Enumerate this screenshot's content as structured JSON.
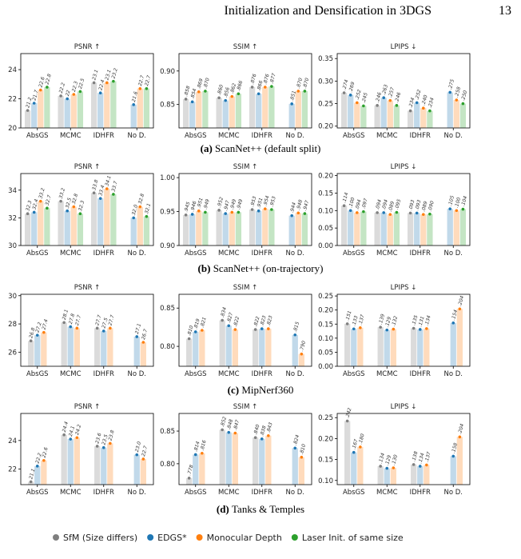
{
  "header": {
    "title": "Initialization and Densification in 3DGS",
    "page": "13"
  },
  "captions": [
    {
      "label": "(a)",
      "text": "ScanNet++ (default split)"
    },
    {
      "label": "(b)",
      "text": "ScanNet++ (on-trajectory)"
    },
    {
      "label": "(c)",
      "text": "MipNerf360"
    },
    {
      "label": "(d)",
      "text": "Tanks & Temples"
    }
  ],
  "chart_data": [
    {
      "type": "bar",
      "title": "PSNR ↑",
      "categories": [
        "AbsGS",
        "MCMC",
        "IDHFR",
        "No D."
      ],
      "ylim": [
        20,
        25.1
      ],
      "yticks": [
        20,
        22,
        24
      ],
      "series": [
        {
          "name": "SfM (Size differs)",
          "color": "#7f7f7f",
          "values": [
            21.2,
            22.2,
            23.1,
            null
          ]
        },
        {
          "name": "EDGS*",
          "color": "#1f77b4",
          "values": [
            21.7,
            22.0,
            22.4,
            21.6
          ]
        },
        {
          "name": "Monocular Depth",
          "color": "#ff7f0e",
          "values": [
            22.6,
            22.3,
            23.1,
            22.7
          ]
        },
        {
          "name": "Laser Init. of same size",
          "color": "#2ca02c",
          "values": [
            22.8,
            22.5,
            23.2,
            22.7
          ]
        }
      ]
    },
    {
      "type": "bar",
      "title": "SSIM ↑",
      "categories": [
        "AbsGS",
        "MCMC",
        "IDHFR",
        "No D."
      ],
      "ylim": [
        0.815,
        0.926
      ],
      "yticks": [
        0.85,
        {
          "value": 0.9,
          "label": "0.90"
        }
      ],
      "series": [
        {
          "name": "SfM (Size differs)",
          "color": "#7f7f7f",
          "values": [
            0.858,
            0.86,
            0.876,
            null
          ],
          "value_labels": [
            ".858",
            ".860",
            ".876",
            null
          ]
        },
        {
          "name": "EDGS*",
          "color": "#1f77b4",
          "values": [
            0.854,
            0.856,
            0.866,
            0.851
          ],
          "value_labels": [
            ".854",
            ".856",
            ".866",
            ".851"
          ]
        },
        {
          "name": "Monocular Depth",
          "color": "#ff7f0e",
          "values": [
            0.869,
            0.862,
            0.876,
            0.87
          ],
          "value_labels": [
            ".869",
            ".862",
            ".876",
            ".870"
          ]
        },
        {
          "name": "Laser Init. of same size",
          "color": "#2ca02c",
          "values": [
            0.87,
            0.866,
            0.877,
            0.87
          ],
          "value_labels": [
            ".870",
            ".866",
            ".877",
            ".870"
          ]
        }
      ]
    },
    {
      "type": "bar",
      "title": "LPIPS ↓",
      "categories": [
        "AbsGS",
        "MCMC",
        "IDHFR",
        "No D."
      ],
      "ylim": [
        0.196,
        0.361
      ],
      "yticks": [
        {
          "value": 0.2,
          "label": "0.20"
        },
        0.25,
        {
          "value": 0.3,
          "label": "0.30"
        },
        0.35
      ],
      "series": [
        {
          "name": "SfM (Size differs)",
          "color": "#7f7f7f",
          "values": [
            0.274,
            0.246,
            0.234,
            null
          ],
          "value_labels": [
            ".274",
            ".246",
            ".234",
            null
          ]
        },
        {
          "name": "EDGS*",
          "color": "#1f77b4",
          "values": [
            0.269,
            0.263,
            0.252,
            0.275
          ],
          "value_labels": [
            ".269",
            ".263",
            ".252",
            ".275"
          ]
        },
        {
          "name": "Monocular Depth",
          "color": "#ff7f0e",
          "values": [
            0.252,
            0.257,
            0.24,
            0.258
          ],
          "value_labels": [
            ".252",
            ".257",
            ".240",
            ".258"
          ]
        },
        {
          "name": "Laser Init. of same size",
          "color": "#2ca02c",
          "values": [
            0.245,
            0.246,
            0.234,
            0.25
          ],
          "value_labels": [
            ".245",
            ".246",
            ".234",
            ".250"
          ]
        }
      ]
    },
    {
      "type": "bar",
      "title": "PSNR ↑",
      "categories": [
        "AbsGS",
        "MCMC",
        "IDHFR",
        "No D."
      ],
      "ylim": [
        30,
        35.2
      ],
      "yticks": [
        30,
        32,
        34
      ],
      "series": [
        {
          "name": "SfM (Size differs)",
          "color": "#7f7f7f",
          "values": [
            32.3,
            33.2,
            33.8,
            null
          ]
        },
        {
          "name": "EDGS*",
          "color": "#1f77b4",
          "values": [
            32.4,
            32.5,
            33.4,
            32.0
          ],
          "value_labels": [
            "32.4",
            "32.5",
            "33.4",
            "32.0"
          ]
        },
        {
          "name": "Monocular Depth",
          "color": "#ff7f0e",
          "values": [
            33.2,
            32.8,
            34.1,
            32.8
          ]
        },
        {
          "name": "Laser Init. of same size",
          "color": "#2ca02c",
          "values": [
            32.7,
            32.3,
            33.7,
            32.1
          ]
        }
      ]
    },
    {
      "type": "bar",
      "title": "SSIM ↑",
      "categories": [
        "AbsGS",
        "MCMC",
        "IDHFR",
        "No D."
      ],
      "ylim": [
        0.9,
        1.006
      ],
      "yticks": [
        {
          "value": 0.9,
          "label": "0.90"
        },
        0.95,
        {
          "value": 1,
          "label": "1.00"
        }
      ],
      "series": [
        {
          "name": "SfM (Size differs)",
          "color": "#7f7f7f",
          "values": [
            0.945,
            0.952,
            0.953,
            null
          ],
          "value_labels": [
            ".945",
            ".952",
            ".953",
            null
          ]
        },
        {
          "name": "EDGS*",
          "color": "#1f77b4",
          "values": [
            0.946,
            0.947,
            0.951,
            0.944
          ],
          "value_labels": [
            ".946",
            ".947",
            ".951",
            ".944"
          ]
        },
        {
          "name": "Monocular Depth",
          "color": "#ff7f0e",
          "values": [
            0.951,
            0.949,
            0.954,
            0.948
          ],
          "value_labels": [
            ".951",
            ".949",
            ".954",
            ".948"
          ]
        },
        {
          "name": "Laser Init. of same size",
          "color": "#2ca02c",
          "values": [
            0.949,
            0.949,
            0.953,
            0.947
          ],
          "value_labels": [
            ".949",
            ".949",
            ".953",
            ".947"
          ]
        }
      ]
    },
    {
      "type": "bar",
      "title": "LPIPS ↓",
      "categories": [
        "AbsGS",
        "MCMC",
        "IDHFR",
        "No D."
      ],
      "ylim": [
        0,
        0.206
      ],
      "yticks": [
        {
          "value": 0,
          "label": "0.00"
        },
        0.05,
        {
          "value": 0.1,
          "label": "0.10"
        },
        0.15,
        {
          "value": 0.2,
          "label": "0.20"
        }
      ],
      "series": [
        {
          "name": "SfM (Size differs)",
          "color": "#7f7f7f",
          "values": [
            0.114,
            0.094,
            0.093,
            null
          ],
          "value_labels": [
            ".114",
            ".094",
            ".093",
            null
          ]
        },
        {
          "name": "EDGS*",
          "color": "#1f77b4",
          "values": [
            0.1,
            0.094,
            0.093,
            0.105
          ],
          "value_labels": [
            ".100",
            ".094",
            ".093",
            ".105"
          ]
        },
        {
          "name": "Monocular Depth",
          "color": "#ff7f0e",
          "values": [
            0.094,
            0.089,
            0.089,
            0.1
          ],
          "value_labels": [
            ".094",
            ".089",
            ".089",
            ".100"
          ]
        },
        {
          "name": "Laser Init. of same size",
          "color": "#2ca02c",
          "values": [
            0.097,
            0.095,
            0.09,
            0.104
          ],
          "value_labels": [
            ".097",
            ".095",
            ".090",
            ".104"
          ]
        }
      ]
    },
    {
      "type": "bar",
      "title": "PSNR ↑",
      "categories": [
        "AbsGS",
        "MCMC",
        "IDHFR",
        "No D."
      ],
      "ylim": [
        25,
        30.1
      ],
      "yticks": [
        26,
        28,
        30
      ],
      "series": [
        {
          "name": "SfM (Size differs)",
          "color": "#7f7f7f",
          "values": [
            26.8,
            28.1,
            27.7,
            null
          ]
        },
        {
          "name": "EDGS*",
          "color": "#1f77b4",
          "values": [
            27.2,
            27.8,
            27.5,
            27.1
          ]
        },
        {
          "name": "Monocular Depth",
          "color": "#ff7f0e",
          "values": [
            27.4,
            27.7,
            27.7,
            26.7
          ]
        }
      ]
    },
    {
      "type": "bar",
      "title": "SSIM ↑",
      "categories": [
        "AbsGS",
        "MCMC",
        "IDHFR",
        "No D."
      ],
      "ylim": [
        0.774,
        0.868
      ],
      "yticks": [
        {
          "value": 0.8,
          "label": "0.80"
        },
        0.85
      ],
      "series": [
        {
          "name": "SfM (Size differs)",
          "color": "#7f7f7f",
          "values": [
            0.81,
            0.834,
            0.822,
            null
          ],
          "value_labels": [
            ".810",
            ".834",
            ".822",
            null
          ]
        },
        {
          "name": "EDGS*",
          "color": "#1f77b4",
          "values": [
            0.819,
            0.827,
            0.823,
            0.815
          ],
          "value_labels": [
            ".819",
            ".827",
            ".823",
            ".815"
          ]
        },
        {
          "name": "Monocular Depth",
          "color": "#ff7f0e",
          "values": [
            0.821,
            0.822,
            0.823,
            0.79
          ],
          "value_labels": [
            ".821",
            ".822",
            ".823",
            ".790"
          ]
        }
      ]
    },
    {
      "type": "bar",
      "title": "LPIPS ↓",
      "categories": [
        "AbsGS",
        "MCMC",
        "IDHFR",
        "No D."
      ],
      "ylim": [
        0,
        0.256
      ],
      "yticks": [
        {
          "value": 0,
          "label": "0.00"
        },
        0.05,
        {
          "value": 0.1,
          "label": "0.10"
        },
        0.15,
        {
          "value": 0.2,
          "label": "0.20"
        },
        0.25
      ],
      "series": [
        {
          "name": "SfM (Size differs)",
          "color": "#7f7f7f",
          "values": [
            0.151,
            0.139,
            0.135,
            null
          ],
          "value_labels": [
            ".151",
            ".139",
            ".135",
            null
          ]
        },
        {
          "name": "EDGS*",
          "color": "#1f77b4",
          "values": [
            0.133,
            0.129,
            0.131,
            0.154
          ],
          "value_labels": [
            ".133",
            ".129",
            ".131",
            ".154"
          ]
        },
        {
          "name": "Monocular Depth",
          "color": "#ff7f0e",
          "values": [
            0.137,
            0.132,
            0.134,
            0.204
          ],
          "value_labels": [
            ".137",
            ".132",
            ".134",
            ".204"
          ]
        }
      ]
    },
    {
      "type": "bar",
      "title": "PSNR ↑",
      "categories": [
        "AbsGS",
        "MCMC",
        "IDHFR",
        "No D."
      ],
      "ylim": [
        20.9,
        25.9
      ],
      "yticks": [
        22,
        24
      ],
      "series": [
        {
          "name": "SfM (Size differs)",
          "color": "#7f7f7f",
          "values": [
            21.1,
            24.4,
            23.6,
            null
          ]
        },
        {
          "name": "EDGS*",
          "color": "#1f77b4",
          "values": [
            22.2,
            24.1,
            23.5,
            23.0
          ],
          "value_labels": [
            "22.2",
            "24.1",
            "23.5",
            "23.0"
          ]
        },
        {
          "name": "Monocular Depth",
          "color": "#ff7f0e",
          "values": [
            22.6,
            24.2,
            23.8,
            22.7
          ]
        }
      ]
    },
    {
      "type": "bar",
      "title": "SSIM ↑",
      "categories": [
        "AbsGS",
        "MCMC",
        "IDHFR",
        "No D."
      ],
      "ylim": [
        0.768,
        0.877
      ],
      "yticks": [
        {
          "value": 0.8,
          "label": "0.80"
        },
        0.85
      ],
      "series": [
        {
          "name": "SfM (Size differs)",
          "color": "#7f7f7f",
          "values": [
            0.778,
            0.852,
            0.84,
            null
          ],
          "value_labels": [
            ".778",
            ".852",
            ".840",
            null
          ]
        },
        {
          "name": "EDGS*",
          "color": "#1f77b4",
          "values": [
            0.814,
            0.848,
            0.838,
            0.824
          ],
          "value_labels": [
            ".814",
            ".848",
            ".838",
            ".824"
          ]
        },
        {
          "name": "Monocular Depth",
          "color": "#ff7f0e",
          "values": [
            0.816,
            0.847,
            0.843,
            0.81
          ],
          "value_labels": [
            ".816",
            ".847",
            ".843",
            ".810"
          ]
        }
      ]
    },
    {
      "type": "bar",
      "title": "LPIPS ↓",
      "categories": [
        "AbsGS",
        "MCMC",
        "IDHFR",
        "No D."
      ],
      "ylim": [
        0.09,
        0.26
      ],
      "yticks": [
        {
          "value": 0.1,
          "label": "0.10"
        },
        0.15,
        {
          "value": 0.2,
          "label": "0.20"
        },
        0.25
      ],
      "series": [
        {
          "name": "SfM (Size differs)",
          "color": "#7f7f7f",
          "values": [
            0.242,
            0.134,
            0.138,
            null
          ],
          "value_labels": [
            ".242",
            ".134",
            ".138",
            null
          ]
        },
        {
          "name": "EDGS*",
          "color": "#1f77b4",
          "values": [
            0.167,
            0.129,
            0.134,
            0.158
          ],
          "value_labels": [
            ".167",
            ".129",
            ".134",
            ".158"
          ]
        },
        {
          "name": "Monocular Depth",
          "color": "#ff7f0e",
          "values": [
            0.18,
            0.13,
            0.137,
            0.204
          ],
          "value_labels": [
            ".180",
            ".130",
            ".137",
            ".204"
          ]
        }
      ]
    }
  ]
}
